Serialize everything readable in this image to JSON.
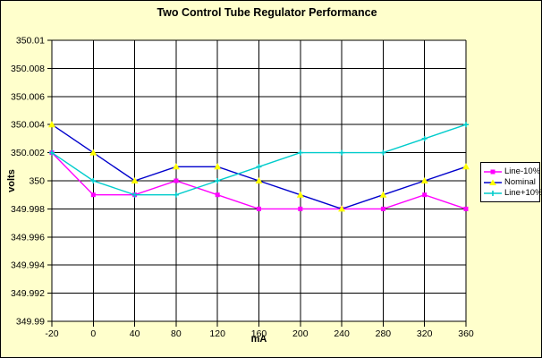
{
  "window": {
    "background": "#FFFFCC",
    "border_color": "#000000"
  },
  "title": "Two Control Tube Regulator Performance",
  "x_axis": {
    "title": "mA",
    "labels": [
      "-20",
      "0",
      "40",
      "80",
      "120",
      "160",
      "200",
      "240",
      "280",
      "320",
      "360"
    ]
  },
  "y_axis": {
    "title": "volts",
    "labels": [
      "350.01",
      "350.008",
      "350.006",
      "350.004",
      "350.002",
      "350",
      "349.998",
      "349.996",
      "349.994",
      "349.992",
      "349.99"
    ]
  },
  "legend": {
    "items": [
      "Line-10%",
      "Nominal",
      "Line+10%"
    ]
  },
  "chart_data": {
    "type": "line",
    "title": "Two Control Tube Regulator Performance",
    "xlabel": "mA",
    "ylabel": "volts",
    "categories": [
      -20,
      0,
      40,
      80,
      120,
      160,
      200,
      240,
      280,
      320,
      360
    ],
    "series": [
      {
        "name": "Line-10%",
        "color": "#FF00FF",
        "marker": "square",
        "marker_color": "#FF00FF",
        "values": [
          350.002,
          349.999,
          349.999,
          350.0,
          349.999,
          349.998,
          349.998,
          349.998,
          349.998,
          349.999,
          349.998
        ]
      },
      {
        "name": "Nominal",
        "color": "#0000CC",
        "marker": "triangle",
        "marker_color": "#FFFF00",
        "values": [
          350.004,
          350.002,
          350.0,
          350.001,
          350.001,
          350.0,
          349.999,
          349.998,
          349.999,
          350.0,
          350.001
        ]
      },
      {
        "name": "Line+10%",
        "color": "#00CCCC",
        "marker": "cross",
        "marker_color": "#00CCCC",
        "values": [
          350.002,
          350.0,
          349.999,
          349.999,
          350.0,
          350.001,
          350.002,
          350.002,
          350.002,
          350.003,
          350.004
        ]
      }
    ],
    "ylim": [
      349.99,
      350.01
    ],
    "y_tick_step": 0.002,
    "grid": true,
    "legend_position": "right",
    "plot_background": "#FFFFFF",
    "gridline_color": "#000000"
  }
}
